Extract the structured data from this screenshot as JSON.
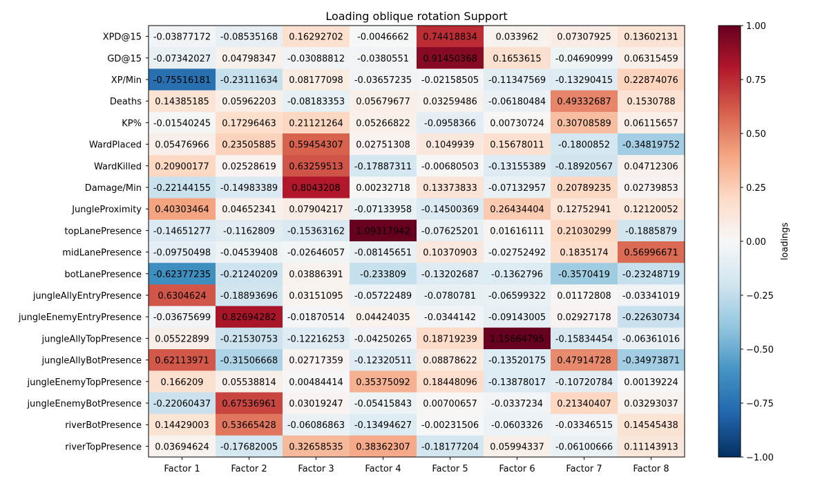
{
  "chart_data": {
    "type": "heatmap",
    "title": "Loading oblique rotation Support",
    "colorbar_label": "loadings",
    "colormap": "RdBu_r",
    "clim": [
      -1.0,
      1.0
    ],
    "colorbar_ticks": [
      "−1.00",
      "−0.75",
      "−0.50",
      "−0.25",
      "0.00",
      "0.25",
      "0.50",
      "0.75",
      "1.00"
    ],
    "colorbar_tick_values": [
      -1.0,
      -0.75,
      -0.5,
      -0.25,
      0.0,
      0.25,
      0.5,
      0.75,
      1.0
    ],
    "columns": [
      "Factor 1",
      "Factor 2",
      "Factor 3",
      "Factor 4",
      "Factor 5",
      "Factor 6",
      "Factor 7",
      "Factor 8"
    ],
    "rows": [
      {
        "label": "XPD@15",
        "values": [
          "-0.03877172",
          "-0.08535168",
          "0.16292702",
          "-0.0046662",
          "0.74418834",
          "0.033962",
          "0.07307925",
          "0.13602131"
        ]
      },
      {
        "label": "GD@15",
        "values": [
          "-0.07342027",
          "0.04798347",
          "-0.03088812",
          "-0.0380551",
          "0.91450368",
          "0.1653615",
          "-0.04690999",
          "0.06315459"
        ]
      },
      {
        "label": "XP/Min",
        "values": [
          "-0.75516181",
          "-0.23111634",
          "0.08177098",
          "-0.03657235",
          "-0.02158505",
          "-0.11347569",
          "-0.13290415",
          "0.22874076"
        ]
      },
      {
        "label": "Deaths",
        "values": [
          "0.14385185",
          "0.05962203",
          "-0.08183353",
          "0.05679677",
          "0.03259486",
          "-0.06180484",
          "0.49332687",
          "0.1530788"
        ]
      },
      {
        "label": "KP%",
        "values": [
          "-0.01540245",
          "0.17296463",
          "0.21121264",
          "0.05266822",
          "-0.0958366",
          "0.00730724",
          "0.30708589",
          "0.06115657"
        ]
      },
      {
        "label": "WardPlaced",
        "values": [
          "0.05476966",
          "0.23505885",
          "0.59454307",
          "0.02751308",
          "0.1049939",
          "0.15678011",
          "-0.1800852",
          "-0.34819752"
        ]
      },
      {
        "label": "WardKilled",
        "values": [
          "0.20900177",
          "0.02528619",
          "0.63259513",
          "-0.17887311",
          "-0.00680503",
          "-0.13155389",
          "-0.18920567",
          "0.04712306"
        ]
      },
      {
        "label": "Damage/Min",
        "values": [
          "-0.22144155",
          "-0.14983389",
          "0.8043208",
          "0.00232718",
          "0.13373833",
          "-0.07132957",
          "0.20789235",
          "0.02739853"
        ]
      },
      {
        "label": "JungleProximity",
        "values": [
          "0.40303464",
          "0.04652341",
          "0.07904217",
          "-0.07133958",
          "-0.14500369",
          "0.26434404",
          "0.12752941",
          "0.12120052"
        ]
      },
      {
        "label": "topLanePresence",
        "values": [
          "-0.14651277",
          "-0.1162809",
          "-0.15363162",
          "1.09317942",
          "-0.07625201",
          "0.01616111",
          "0.21030299",
          "-0.1885879"
        ]
      },
      {
        "label": "midLanePresence",
        "values": [
          "-0.09750498",
          "-0.04539408",
          "-0.02646057",
          "-0.08145651",
          "0.10370903",
          "-0.02752492",
          "0.1835174",
          "0.56996671"
        ]
      },
      {
        "label": "botLanePresence",
        "values": [
          "-0.62377235",
          "-0.21240209",
          "0.03886391",
          "-0.233809",
          "-0.13202687",
          "-0.1362796",
          "-0.3570419",
          "-0.23248719"
        ]
      },
      {
        "label": "jungleAllyEntryPresence",
        "values": [
          "0.6304624",
          "-0.18893696",
          "0.03151095",
          "-0.05722489",
          "-0.0780781",
          "-0.06599322",
          "0.01172808",
          "-0.03341019"
        ]
      },
      {
        "label": "jungleEnemyEntryPresence",
        "values": [
          "-0.03675699",
          "0.82694282",
          "-0.01870514",
          "0.04424035",
          "-0.0344142",
          "-0.09143005",
          "0.02927178",
          "-0.22630734"
        ]
      },
      {
        "label": "jungleAllyTopPresence",
        "values": [
          "0.05522899",
          "-0.21530753",
          "-0.12216253",
          "-0.04250265",
          "0.18719239",
          "1.15664795",
          "-0.15834454",
          "-0.06361016"
        ]
      },
      {
        "label": "jungleAllyBotPresence",
        "values": [
          "0.62113971",
          "-0.31506668",
          "0.02717359",
          "-0.12320511",
          "0.08878622",
          "-0.13520175",
          "0.47914728",
          "-0.34973871"
        ]
      },
      {
        "label": "jungleEnemyTopPresence",
        "values": [
          "0.166209",
          "0.05538814",
          "0.00484414",
          "0.35375092",
          "0.18448096",
          "-0.13878017",
          "-0.10720784",
          "0.00139224"
        ]
      },
      {
        "label": "jungleEnemyBotPresence",
        "values": [
          "-0.22060437",
          "0.67536961",
          "0.03019247",
          "-0.05415843",
          "0.00700657",
          "-0.0337234",
          "0.21340407",
          "0.03293037"
        ]
      },
      {
        "label": "riverBotPresence",
        "values": [
          "0.14429003",
          "0.53665428",
          "-0.06086863",
          "-0.13494627",
          "-0.00231506",
          "-0.0603326",
          "-0.03346515",
          "0.14545438"
        ]
      },
      {
        "label": "riverTopPresence",
        "values": [
          "0.03694624",
          "-0.17682005",
          "0.32658535",
          "0.38362307",
          "-0.18177204",
          "0.05994337",
          "-0.06100666",
          "0.11143913"
        ]
      }
    ]
  }
}
